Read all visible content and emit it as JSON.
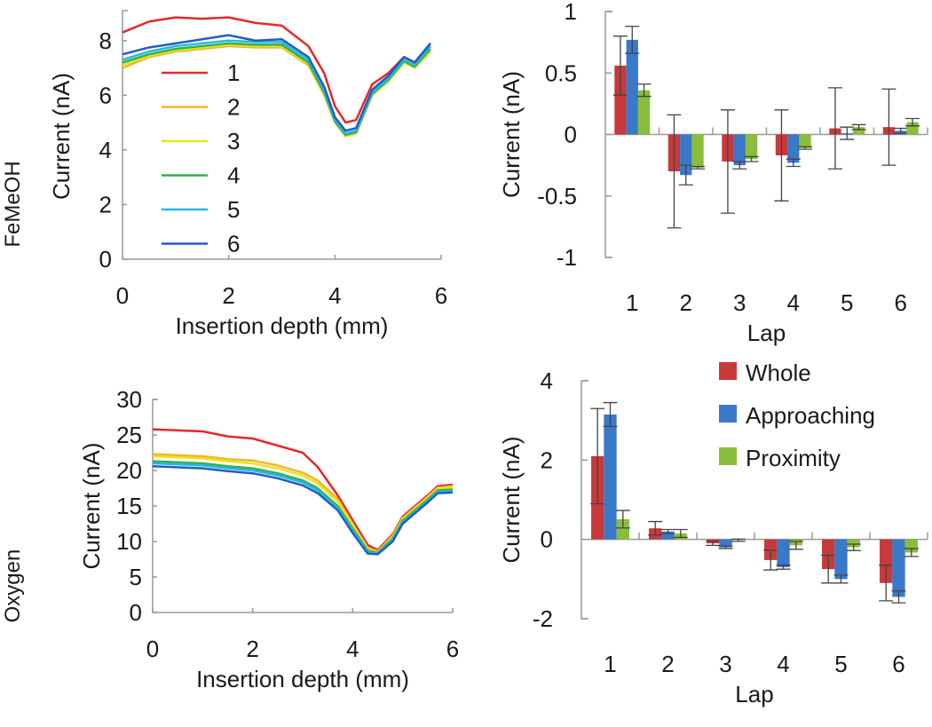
{
  "chart_data": [
    {
      "type": "line",
      "panel": "FeMeOH",
      "row_label": "FeMeOH",
      "xlabel": "Insertion depth (mm)",
      "ylabel": "Current (nA)",
      "xlim": [
        0,
        6
      ],
      "ylim": [
        0,
        9
      ],
      "xticks": [
        "0",
        "2",
        "4",
        "6"
      ],
      "yticks": [
        "0",
        "2",
        "4",
        "6",
        "8"
      ],
      "series": [
        {
          "name": "1",
          "color": "#e8262a",
          "x": [
            0,
            0.5,
            1,
            1.5,
            2,
            2.5,
            3,
            3.5,
            3.8,
            4,
            4.2,
            4.4,
            4.7,
            5,
            5.3,
            5.5,
            5.8
          ],
          "y": [
            8.3,
            8.7,
            8.85,
            8.8,
            8.85,
            8.65,
            8.55,
            7.8,
            6.8,
            5.6,
            5.0,
            5.1,
            6.4,
            6.8,
            7.4,
            7.2,
            7.9
          ]
        },
        {
          "name": "2",
          "color": "#f5b42a",
          "x": [
            0,
            0.5,
            1,
            1.5,
            2,
            2.5,
            3,
            3.5,
            3.8,
            4,
            4.2,
            4.4,
            4.7,
            5,
            5.3,
            5.5,
            5.8
          ],
          "y": [
            7.0,
            7.4,
            7.6,
            7.7,
            7.8,
            7.75,
            7.75,
            7.1,
            6.0,
            5.0,
            4.5,
            4.6,
            6.0,
            6.5,
            7.2,
            7.0,
            7.6
          ]
        },
        {
          "name": "3",
          "color": "#e6e619",
          "x": [
            0,
            0.5,
            1,
            1.5,
            2,
            2.5,
            3,
            3.5,
            3.8,
            4,
            4.2,
            4.4,
            4.7,
            5,
            5.3,
            5.5,
            5.8
          ],
          "y": [
            7.1,
            7.45,
            7.65,
            7.75,
            7.85,
            7.8,
            7.8,
            7.15,
            6.05,
            5.0,
            4.5,
            4.6,
            6.0,
            6.5,
            7.2,
            7.0,
            7.6
          ]
        },
        {
          "name": "4",
          "color": "#2db34a",
          "x": [
            0,
            0.5,
            1,
            1.5,
            2,
            2.5,
            3,
            3.5,
            3.8,
            4,
            4.2,
            4.4,
            4.7,
            5,
            5.3,
            5.5,
            5.8
          ],
          "y": [
            7.2,
            7.5,
            7.7,
            7.8,
            7.9,
            7.85,
            7.85,
            7.2,
            6.1,
            5.05,
            4.55,
            4.65,
            6.05,
            6.55,
            7.25,
            7.05,
            7.7
          ]
        },
        {
          "name": "5",
          "color": "#29b6e8",
          "x": [
            0,
            0.5,
            1,
            1.5,
            2,
            2.5,
            3,
            3.5,
            3.8,
            4,
            4.2,
            4.4,
            4.7,
            5,
            5.3,
            5.5,
            5.8
          ],
          "y": [
            7.3,
            7.6,
            7.8,
            7.9,
            8.0,
            7.95,
            7.95,
            7.3,
            6.2,
            5.1,
            4.6,
            4.7,
            6.1,
            6.6,
            7.3,
            7.1,
            7.8
          ]
        },
        {
          "name": "6",
          "color": "#1f5fbf",
          "x": [
            0,
            0.5,
            1,
            1.5,
            2,
            2.5,
            3,
            3.5,
            3.8,
            4,
            4.2,
            4.4,
            4.7,
            5,
            5.3,
            5.5,
            5.8
          ],
          "y": [
            7.5,
            7.75,
            7.9,
            8.05,
            8.2,
            8.0,
            8.05,
            7.4,
            6.3,
            5.2,
            4.7,
            4.8,
            6.2,
            6.7,
            7.4,
            7.2,
            7.9
          ]
        }
      ]
    },
    {
      "type": "bar",
      "panel": "FeMeOH",
      "xlabel": "Lap",
      "ylabel": "Current (nA)",
      "ylim": [
        -1,
        1
      ],
      "yticks": [
        "-1",
        "-0.5",
        "0",
        "0.5",
        "1"
      ],
      "categories": [
        "1",
        "2",
        "3",
        "4",
        "5",
        "6"
      ],
      "series": [
        {
          "name": "Whole",
          "color": "#c8393b",
          "values": [
            0.56,
            -0.3,
            -0.22,
            -0.17,
            0.05,
            0.06
          ],
          "errors": [
            0.24,
            0.46,
            0.42,
            0.37,
            0.33,
            0.31
          ]
        },
        {
          "name": "Approaching",
          "color": "#3a78c8",
          "values": [
            0.77,
            -0.33,
            -0.25,
            -0.23,
            0.01,
            0.03
          ],
          "errors": [
            0.11,
            0.08,
            0.03,
            0.03,
            0.05,
            0.02
          ]
        },
        {
          "name": "Proximity",
          "color": "#8bbd3c",
          "values": [
            0.36,
            -0.27,
            -0.2,
            -0.11,
            0.06,
            0.1
          ],
          "errors": [
            0.05,
            0.01,
            0.02,
            0.01,
            0.02,
            0.03
          ]
        }
      ]
    },
    {
      "type": "line",
      "panel": "Oxygen",
      "row_label": "Oxygen",
      "xlabel": "Insertion depth (mm)",
      "ylabel": "Current (nA)",
      "xlim": [
        0,
        6
      ],
      "ylim": [
        0,
        30
      ],
      "xticks": [
        "0",
        "2",
        "4",
        "6"
      ],
      "yticks": [
        "0",
        "5",
        "10",
        "15",
        "20",
        "25",
        "30"
      ],
      "series": [
        {
          "name": "1",
          "color": "#e8262a",
          "x": [
            0,
            1,
            1.5,
            2,
            2.5,
            3,
            3.3,
            3.7,
            4,
            4.3,
            4.5,
            4.8,
            5,
            5.5,
            5.7,
            6
          ],
          "y": [
            25.8,
            25.5,
            24.8,
            24.5,
            23.5,
            22.5,
            20.5,
            16.5,
            13,
            9.5,
            8.8,
            11,
            13.5,
            16.5,
            17.8,
            18
          ]
        },
        {
          "name": "2",
          "color": "#f5b42a",
          "x": [
            0,
            1,
            1.5,
            2,
            2.5,
            3,
            3.3,
            3.7,
            4,
            4.3,
            4.5,
            4.8,
            5,
            5.5,
            5.7,
            6
          ],
          "y": [
            22.3,
            22,
            21.6,
            21.4,
            20.7,
            19.7,
            18.6,
            16,
            12.5,
            9.1,
            8.6,
            10.8,
            13.3,
            16.3,
            17.6,
            17.8
          ]
        },
        {
          "name": "3",
          "color": "#e6e619",
          "x": [
            0,
            1,
            1.5,
            2,
            2.5,
            3,
            3.3,
            3.7,
            4,
            4.3,
            4.5,
            4.8,
            5,
            5.5,
            5.7,
            6
          ],
          "y": [
            22,
            21.7,
            21.3,
            21,
            20.3,
            19.3,
            18.2,
            15.6,
            12.2,
            8.9,
            8.5,
            10.6,
            13.1,
            16.1,
            17.4,
            17.6
          ]
        },
        {
          "name": "4",
          "color": "#2db34a",
          "x": [
            0,
            1,
            1.5,
            2,
            2.5,
            3,
            3.3,
            3.7,
            4,
            4.3,
            4.5,
            4.8,
            5,
            5.5,
            5.7,
            6
          ],
          "y": [
            21.3,
            21,
            20.6,
            20.3,
            19.6,
            18.6,
            17.5,
            15,
            11.8,
            8.7,
            8.4,
            10.4,
            12.9,
            15.9,
            17.2,
            17.3
          ]
        },
        {
          "name": "5",
          "color": "#29b6e8",
          "x": [
            0,
            1,
            1.5,
            2,
            2.5,
            3,
            3.3,
            3.7,
            4,
            4.3,
            4.5,
            4.8,
            5,
            5.5,
            5.7,
            6
          ],
          "y": [
            21,
            20.7,
            20.3,
            20,
            19.3,
            18.3,
            17.2,
            14.7,
            11.5,
            8.5,
            8.3,
            10.2,
            12.7,
            15.7,
            17,
            17.1
          ]
        },
        {
          "name": "6",
          "color": "#1f5fbf",
          "x": [
            0,
            1,
            1.5,
            2,
            2.5,
            3,
            3.3,
            3.7,
            4,
            4.3,
            4.5,
            4.8,
            5,
            5.5,
            5.7,
            6
          ],
          "y": [
            20.6,
            20.3,
            19.9,
            19.6,
            18.9,
            17.9,
            16.8,
            14.4,
            11.2,
            8.3,
            8.2,
            10,
            12.5,
            15.5,
            16.8,
            16.9
          ]
        }
      ]
    },
    {
      "type": "bar",
      "panel": "Oxygen",
      "xlabel": "Lap",
      "ylabel": "Current (nA)",
      "ylim": [
        -2,
        4
      ],
      "yticks": [
        "-2",
        "0",
        "2",
        "4"
      ],
      "legend_position": "top-right",
      "categories": [
        "1",
        "2",
        "3",
        "4",
        "5",
        "6"
      ],
      "series": [
        {
          "name": "Whole",
          "color": "#c8393b",
          "values": [
            2.1,
            0.28,
            -0.1,
            -0.52,
            -0.75,
            -1.1
          ],
          "errors": [
            1.2,
            0.17,
            0.05,
            0.25,
            0.35,
            0.45
          ]
        },
        {
          "name": "Approaching",
          "color": "#3a78c8",
          "values": [
            3.15,
            0.2,
            -0.2,
            -0.7,
            -1.0,
            -1.45
          ],
          "errors": [
            0.3,
            0.05,
            0.03,
            0.05,
            0.1,
            0.15
          ]
        },
        {
          "name": "Proximity",
          "color": "#8bbd3c",
          "values": [
            0.51,
            0.15,
            -0.02,
            -0.15,
            -0.2,
            -0.33
          ],
          "errors": [
            0.22,
            0.1,
            0.03,
            0.1,
            0.08,
            0.1
          ]
        }
      ]
    }
  ]
}
